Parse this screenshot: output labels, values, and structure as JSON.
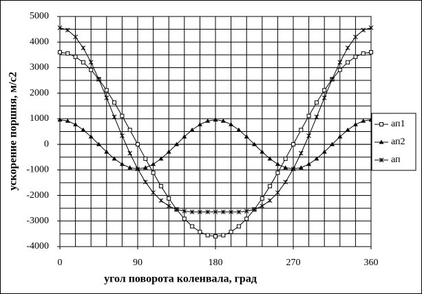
{
  "chart_data": {
    "type": "line",
    "x_label": "угол поворота коленвала, град",
    "y_label": "ускорение поршня, м/с2",
    "x": [
      0,
      9,
      18,
      27,
      36,
      45,
      54,
      63,
      72,
      81,
      90,
      99,
      108,
      117,
      126,
      135,
      144,
      153,
      162,
      171,
      180,
      189,
      198,
      207,
      216,
      225,
      234,
      243,
      252,
      261,
      270,
      279,
      288,
      297,
      306,
      315,
      324,
      333,
      342,
      351,
      360
    ],
    "series": [
      {
        "name": "ап1",
        "color": "#000000",
        "marker": "square",
        "values": [
          3600,
          3556,
          3424,
          3208,
          2912,
          2546,
          2116,
          1634,
          1112,
          563,
          0,
          -563,
          -1112,
          -1634,
          -2116,
          -2546,
          -2912,
          -3208,
          -3424,
          -3556,
          -3600,
          -3556,
          -3424,
          -3208,
          -2912,
          -2546,
          -2116,
          -1634,
          -1112,
          -563,
          0,
          563,
          1112,
          1634,
          2116,
          2546,
          2912,
          3208,
          3424,
          3556,
          3600
        ]
      },
      {
        "name": "ап2",
        "color": "#000000",
        "marker": "triangle",
        "values": [
          960,
          913,
          777,
          564,
          297,
          0,
          -297,
          -564,
          -777,
          -913,
          -960,
          -913,
          -777,
          -564,
          -297,
          0,
          297,
          564,
          777,
          913,
          960,
          913,
          777,
          564,
          297,
          0,
          -297,
          -564,
          -777,
          -913,
          -960,
          -913,
          -777,
          -564,
          -297,
          0,
          297,
          564,
          777,
          913,
          960
        ]
      },
      {
        "name": "ап",
        "color": "#000000",
        "marker": "cross",
        "values": [
          4560,
          4469,
          4201,
          3772,
          3209,
          2546,
          1819,
          1070,
          335,
          -350,
          -960,
          -1476,
          -1889,
          -2198,
          -2413,
          -2546,
          -2615,
          -2644,
          -2647,
          -2643,
          -2640,
          -2643,
          -2647,
          -2644,
          -2615,
          -2546,
          -2413,
          -2198,
          -1889,
          -1476,
          -960,
          -350,
          335,
          1070,
          1819,
          2546,
          3209,
          3772,
          4201,
          4469,
          4560
        ]
      }
    ],
    "xlim": [
      0,
      360
    ],
    "xticks": [
      0,
      90,
      180,
      270,
      360
    ],
    "xminorticks": [
      18,
      36,
      54,
      72,
      108,
      126,
      144,
      162,
      198,
      216,
      234,
      252,
      288,
      306,
      324,
      342
    ],
    "ylim": [
      -4000,
      5000
    ],
    "yticks": [
      -4000,
      -3000,
      -2000,
      -1000,
      0,
      1000,
      2000,
      3000,
      4000,
      5000
    ],
    "yminorticks": [
      -3500,
      -2500,
      -1500,
      -500,
      500,
      1500,
      2500,
      3500,
      4500
    ],
    "grid": true,
    "legend": "right"
  }
}
